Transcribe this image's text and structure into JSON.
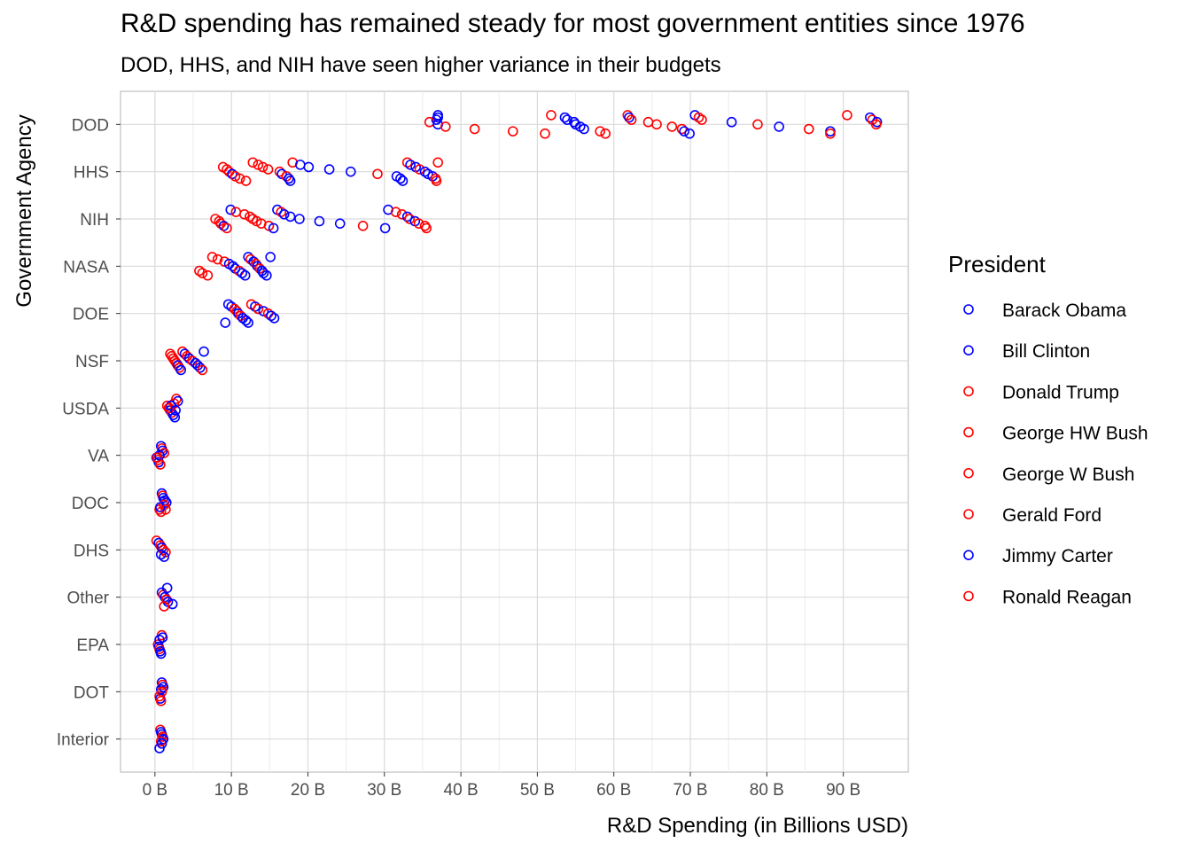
{
  "title": "R&D spending has remained steady for most government entities since 1976",
  "subtitle": "DOD, HHS, and NIH have seen higher variance in their budgets",
  "chart_data": {
    "type": "scatter",
    "title": "R&D spending has remained steady for most government entities since 1976",
    "subtitle": "DOD, HHS, and NIH have seen higher variance in their budgets",
    "xlabel": "R&D Spending (in Billions USD)",
    "ylabel": "Government Agency",
    "xlim": [
      -4.5,
      98.5
    ],
    "x_ticks": [
      0,
      10,
      20,
      30,
      40,
      50,
      60,
      70,
      80,
      90
    ],
    "x_tick_labels": [
      "0 B",
      "10 B",
      "20 B",
      "30 B",
      "40 B",
      "50 B",
      "60 B",
      "70 B",
      "80 B",
      "90 B"
    ],
    "categories": [
      "DOD",
      "HHS",
      "NIH",
      "NASA",
      "DOE",
      "NSF",
      "USDA",
      "VA",
      "DOC",
      "DHS",
      "Other",
      "EPA",
      "DOT",
      "Interior"
    ],
    "grid": true,
    "legend": {
      "title": "President",
      "placement": "right",
      "entries": [
        {
          "name": "Barack Obama",
          "color": "#0000ff"
        },
        {
          "name": "Bill Clinton",
          "color": "#0000ff"
        },
        {
          "name": "Donald Trump",
          "color": "#ff0000"
        },
        {
          "name": "George HW Bush",
          "color": "#ff0000"
        },
        {
          "name": "George W Bush",
          "color": "#ff0000"
        },
        {
          "name": "Gerald Ford",
          "color": "#ff0000"
        },
        {
          "name": "Jimmy Carter",
          "color": "#0000ff"
        },
        {
          "name": "Ronald Reagan",
          "color": "#ff0000"
        }
      ]
    },
    "series": [
      {
        "name": "DOD",
        "points": [
          {
            "x": 37.0,
            "c": "b"
          },
          {
            "x": 37.0,
            "c": "b"
          },
          {
            "x": 36.8,
            "c": "b"
          },
          {
            "x": 35.9,
            "c": "r"
          },
          {
            "x": 37.0,
            "c": "b"
          },
          {
            "x": 38.0,
            "c": "r"
          },
          {
            "x": 41.8,
            "c": "r"
          },
          {
            "x": 46.8,
            "c": "r"
          },
          {
            "x": 51.0,
            "c": "r"
          },
          {
            "x": 51.8,
            "c": "r"
          },
          {
            "x": 53.6,
            "c": "b"
          },
          {
            "x": 53.9,
            "c": "b"
          },
          {
            "x": 54.8,
            "c": "b"
          },
          {
            "x": 55.0,
            "c": "b"
          },
          {
            "x": 55.6,
            "c": "b"
          },
          {
            "x": 56.1,
            "c": "b"
          },
          {
            "x": 58.2,
            "c": "r"
          },
          {
            "x": 58.9,
            "c": "r"
          },
          {
            "x": 61.8,
            "c": "r"
          },
          {
            "x": 62.0,
            "c": "b"
          },
          {
            "x": 62.3,
            "c": "r"
          },
          {
            "x": 64.5,
            "c": "r"
          },
          {
            "x": 65.6,
            "c": "r"
          },
          {
            "x": 67.6,
            "c": "r"
          },
          {
            "x": 68.9,
            "c": "r"
          },
          {
            "x": 69.2,
            "c": "b"
          },
          {
            "x": 69.9,
            "c": "b"
          },
          {
            "x": 70.6,
            "c": "b"
          },
          {
            "x": 71.1,
            "c": "r"
          },
          {
            "x": 71.5,
            "c": "r"
          },
          {
            "x": 75.4,
            "c": "b"
          },
          {
            "x": 78.8,
            "c": "r"
          },
          {
            "x": 81.6,
            "c": "b"
          },
          {
            "x": 85.5,
            "c": "r"
          },
          {
            "x": 88.3,
            "c": "b"
          },
          {
            "x": 88.3,
            "c": "r"
          },
          {
            "x": 90.5,
            "c": "r"
          },
          {
            "x": 93.5,
            "c": "b"
          },
          {
            "x": 93.8,
            "c": "r"
          },
          {
            "x": 94.4,
            "c": "b"
          },
          {
            "x": 94.3,
            "c": "r"
          }
        ]
      },
      {
        "name": "HHS",
        "points": [
          {
            "x": 8.9,
            "c": "r"
          },
          {
            "x": 9.4,
            "c": "r"
          },
          {
            "x": 9.7,
            "c": "r"
          },
          {
            "x": 10.1,
            "c": "b"
          },
          {
            "x": 10.5,
            "c": "r"
          },
          {
            "x": 11.1,
            "c": "r"
          },
          {
            "x": 11.9,
            "c": "r"
          },
          {
            "x": 12.8,
            "c": "r"
          },
          {
            "x": 13.5,
            "c": "r"
          },
          {
            "x": 14.1,
            "c": "r"
          },
          {
            "x": 14.8,
            "c": "r"
          },
          {
            "x": 16.3,
            "c": "r"
          },
          {
            "x": 16.6,
            "c": "b"
          },
          {
            "x": 17.2,
            "c": "r"
          },
          {
            "x": 17.5,
            "c": "b"
          },
          {
            "x": 17.7,
            "c": "b"
          },
          {
            "x": 18.0,
            "c": "r"
          },
          {
            "x": 19.0,
            "c": "b"
          },
          {
            "x": 20.1,
            "c": "b"
          },
          {
            "x": 22.8,
            "c": "b"
          },
          {
            "x": 25.6,
            "c": "b"
          },
          {
            "x": 29.1,
            "c": "r"
          },
          {
            "x": 31.6,
            "c": "b"
          },
          {
            "x": 32.1,
            "c": "b"
          },
          {
            "x": 32.4,
            "c": "b"
          },
          {
            "x": 33.0,
            "c": "r"
          },
          {
            "x": 33.4,
            "c": "b"
          },
          {
            "x": 34.1,
            "c": "b"
          },
          {
            "x": 34.6,
            "c": "r"
          },
          {
            "x": 35.3,
            "c": "b"
          },
          {
            "x": 35.7,
            "c": "b"
          },
          {
            "x": 36.3,
            "c": "b"
          },
          {
            "x": 36.7,
            "c": "r"
          },
          {
            "x": 36.8,
            "c": "r"
          },
          {
            "x": 37.0,
            "c": "r"
          }
        ]
      },
      {
        "name": "NIH",
        "points": [
          {
            "x": 7.9,
            "c": "r"
          },
          {
            "x": 8.4,
            "c": "r"
          },
          {
            "x": 8.6,
            "c": "r"
          },
          {
            "x": 9.0,
            "c": "b"
          },
          {
            "x": 9.4,
            "c": "r"
          },
          {
            "x": 9.9,
            "c": "b"
          },
          {
            "x": 10.6,
            "c": "r"
          },
          {
            "x": 11.7,
            "c": "r"
          },
          {
            "x": 12.4,
            "c": "r"
          },
          {
            "x": 12.8,
            "c": "r"
          },
          {
            "x": 13.3,
            "c": "r"
          },
          {
            "x": 13.9,
            "c": "r"
          },
          {
            "x": 14.9,
            "c": "r"
          },
          {
            "x": 15.5,
            "c": "b"
          },
          {
            "x": 16.0,
            "c": "b"
          },
          {
            "x": 16.5,
            "c": "r"
          },
          {
            "x": 16.9,
            "c": "b"
          },
          {
            "x": 17.7,
            "c": "b"
          },
          {
            "x": 18.9,
            "c": "b"
          },
          {
            "x": 21.5,
            "c": "b"
          },
          {
            "x": 24.2,
            "c": "b"
          },
          {
            "x": 27.2,
            "c": "r"
          },
          {
            "x": 30.1,
            "c": "b"
          },
          {
            "x": 30.5,
            "c": "b"
          },
          {
            "x": 31.5,
            "c": "r"
          },
          {
            "x": 32.3,
            "c": "r"
          },
          {
            "x": 33.0,
            "c": "b"
          },
          {
            "x": 33.3,
            "c": "r"
          },
          {
            "x": 34.0,
            "c": "b"
          },
          {
            "x": 34.5,
            "c": "r"
          },
          {
            "x": 35.3,
            "c": "r"
          },
          {
            "x": 35.5,
            "c": "r"
          }
        ]
      },
      {
        "name": "NASA",
        "points": [
          {
            "x": 5.8,
            "c": "r"
          },
          {
            "x": 6.2,
            "c": "r"
          },
          {
            "x": 6.9,
            "c": "r"
          },
          {
            "x": 7.5,
            "c": "r"
          },
          {
            "x": 8.2,
            "c": "r"
          },
          {
            "x": 9.1,
            "c": "r"
          },
          {
            "x": 9.7,
            "c": "b"
          },
          {
            "x": 10.2,
            "c": "b"
          },
          {
            "x": 10.5,
            "c": "b"
          },
          {
            "x": 11.0,
            "c": "r"
          },
          {
            "x": 11.4,
            "c": "b"
          },
          {
            "x": 11.8,
            "c": "b"
          },
          {
            "x": 12.2,
            "c": "b"
          },
          {
            "x": 12.5,
            "c": "r"
          },
          {
            "x": 12.9,
            "c": "b"
          },
          {
            "x": 13.2,
            "c": "r"
          },
          {
            "x": 13.4,
            "c": "b"
          },
          {
            "x": 13.7,
            "c": "r"
          },
          {
            "x": 14.0,
            "c": "b"
          },
          {
            "x": 14.2,
            "c": "b"
          },
          {
            "x": 14.6,
            "c": "b"
          },
          {
            "x": 15.1,
            "c": "b"
          }
        ]
      },
      {
        "name": "DOE",
        "points": [
          {
            "x": 9.2,
            "c": "b"
          },
          {
            "x": 9.6,
            "c": "b"
          },
          {
            "x": 10.0,
            "c": "b"
          },
          {
            "x": 10.4,
            "c": "r"
          },
          {
            "x": 10.7,
            "c": "r"
          },
          {
            "x": 10.9,
            "c": "b"
          },
          {
            "x": 11.2,
            "c": "r"
          },
          {
            "x": 11.5,
            "c": "b"
          },
          {
            "x": 11.9,
            "c": "b"
          },
          {
            "x": 12.2,
            "c": "b"
          },
          {
            "x": 12.6,
            "c": "r"
          },
          {
            "x": 13.1,
            "c": "b"
          },
          {
            "x": 13.5,
            "c": "r"
          },
          {
            "x": 14.2,
            "c": "b"
          },
          {
            "x": 14.8,
            "c": "r"
          },
          {
            "x": 15.2,
            "c": "b"
          },
          {
            "x": 15.6,
            "c": "b"
          }
        ]
      },
      {
        "name": "NSF",
        "points": [
          {
            "x": 2.0,
            "c": "r"
          },
          {
            "x": 2.2,
            "c": "r"
          },
          {
            "x": 2.4,
            "c": "r"
          },
          {
            "x": 2.6,
            "c": "r"
          },
          {
            "x": 2.8,
            "c": "r"
          },
          {
            "x": 3.0,
            "c": "b"
          },
          {
            "x": 3.2,
            "c": "r"
          },
          {
            "x": 3.4,
            "c": "b"
          },
          {
            "x": 3.6,
            "c": "r"
          },
          {
            "x": 3.9,
            "c": "b"
          },
          {
            "x": 4.2,
            "c": "r"
          },
          {
            "x": 4.5,
            "c": "b"
          },
          {
            "x": 4.9,
            "c": "r"
          },
          {
            "x": 5.3,
            "c": "b"
          },
          {
            "x": 5.6,
            "c": "b"
          },
          {
            "x": 5.9,
            "c": "b"
          },
          {
            "x": 6.2,
            "c": "r"
          },
          {
            "x": 6.4,
            "c": "b"
          }
        ]
      },
      {
        "name": "USDA",
        "points": [
          {
            "x": 1.6,
            "c": "r"
          },
          {
            "x": 1.8,
            "c": "r"
          },
          {
            "x": 2.0,
            "c": "b"
          },
          {
            "x": 2.2,
            "c": "r"
          },
          {
            "x": 2.4,
            "c": "b"
          },
          {
            "x": 2.6,
            "c": "b"
          },
          {
            "x": 2.8,
            "c": "r"
          },
          {
            "x": 3.0,
            "c": "b"
          },
          {
            "x": 2.5,
            "c": "r"
          },
          {
            "x": 2.1,
            "c": "b"
          },
          {
            "x": 1.9,
            "c": "r"
          },
          {
            "x": 2.7,
            "c": "b"
          }
        ]
      },
      {
        "name": "VA",
        "points": [
          {
            "x": 0.2,
            "c": "b"
          },
          {
            "x": 0.4,
            "c": "r"
          },
          {
            "x": 0.5,
            "c": "b"
          },
          {
            "x": 0.7,
            "c": "r"
          },
          {
            "x": 0.8,
            "c": "b"
          },
          {
            "x": 0.9,
            "c": "r"
          },
          {
            "x": 1.0,
            "c": "b"
          },
          {
            "x": 1.2,
            "c": "r"
          },
          {
            "x": 0.6,
            "c": "b"
          },
          {
            "x": 0.3,
            "c": "r"
          }
        ]
      },
      {
        "name": "DOC",
        "points": [
          {
            "x": 0.6,
            "c": "r"
          },
          {
            "x": 0.8,
            "c": "r"
          },
          {
            "x": 0.9,
            "c": "b"
          },
          {
            "x": 1.0,
            "c": "r"
          },
          {
            "x": 1.1,
            "c": "b"
          },
          {
            "x": 1.3,
            "c": "b"
          },
          {
            "x": 1.5,
            "c": "b"
          },
          {
            "x": 1.2,
            "c": "r"
          },
          {
            "x": 0.7,
            "c": "b"
          },
          {
            "x": 1.4,
            "c": "r"
          }
        ]
      },
      {
        "name": "DHS",
        "points": [
          {
            "x": 0.2,
            "c": "r"
          },
          {
            "x": 0.5,
            "c": "b"
          },
          {
            "x": 0.7,
            "c": "r"
          },
          {
            "x": 0.9,
            "c": "b"
          },
          {
            "x": 1.1,
            "c": "r"
          },
          {
            "x": 1.4,
            "c": "r"
          },
          {
            "x": 0.8,
            "c": "b"
          },
          {
            "x": 1.2,
            "c": "b"
          }
        ]
      },
      {
        "name": "Other",
        "points": [
          {
            "x": 0.9,
            "c": "b"
          },
          {
            "x": 1.1,
            "c": "r"
          },
          {
            "x": 1.3,
            "c": "b"
          },
          {
            "x": 1.5,
            "c": "r"
          },
          {
            "x": 1.7,
            "c": "b"
          },
          {
            "x": 2.3,
            "c": "b"
          },
          {
            "x": 1.2,
            "c": "r"
          },
          {
            "x": 1.6,
            "c": "b"
          }
        ]
      },
      {
        "name": "EPA",
        "points": [
          {
            "x": 0.4,
            "c": "r"
          },
          {
            "x": 0.5,
            "c": "b"
          },
          {
            "x": 0.6,
            "c": "r"
          },
          {
            "x": 0.7,
            "c": "b"
          },
          {
            "x": 0.8,
            "c": "b"
          },
          {
            "x": 0.9,
            "c": "r"
          },
          {
            "x": 1.0,
            "c": "b"
          },
          {
            "x": 0.6,
            "c": "b"
          }
        ]
      },
      {
        "name": "DOT",
        "points": [
          {
            "x": 0.6,
            "c": "r"
          },
          {
            "x": 0.7,
            "c": "b"
          },
          {
            "x": 0.8,
            "c": "r"
          },
          {
            "x": 0.9,
            "c": "b"
          },
          {
            "x": 1.0,
            "c": "r"
          },
          {
            "x": 1.1,
            "c": "b"
          },
          {
            "x": 0.8,
            "c": "b"
          },
          {
            "x": 0.9,
            "c": "r"
          }
        ]
      },
      {
        "name": "Interior",
        "points": [
          {
            "x": 0.6,
            "c": "b"
          },
          {
            "x": 0.7,
            "c": "r"
          },
          {
            "x": 0.8,
            "c": "b"
          },
          {
            "x": 0.9,
            "c": "b"
          },
          {
            "x": 1.0,
            "c": "r"
          },
          {
            "x": 1.1,
            "c": "b"
          },
          {
            "x": 0.8,
            "c": "r"
          },
          {
            "x": 0.9,
            "c": "b"
          }
        ]
      }
    ]
  }
}
